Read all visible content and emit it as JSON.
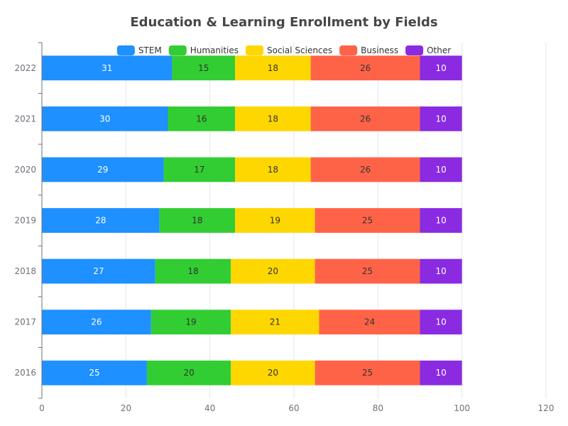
{
  "chart_data": {
    "type": "bar",
    "orientation": "horizontal",
    "stacked": true,
    "title": "Education & Learning Enrollment by Fields",
    "categories": [
      "2022",
      "2021",
      "2020",
      "2019",
      "2018",
      "2017",
      "2016"
    ],
    "series": [
      {
        "name": "STEM",
        "color": "#1e90ff",
        "label_color": "#ffffff",
        "values": [
          31,
          30,
          29,
          28,
          27,
          26,
          25
        ]
      },
      {
        "name": "Humanities",
        "color": "#32cd32",
        "label_color": "#333333",
        "values": [
          15,
          16,
          17,
          18,
          18,
          19,
          20
        ]
      },
      {
        "name": "Social Sciences",
        "color": "#ffd700",
        "label_color": "#333333",
        "values": [
          18,
          18,
          18,
          19,
          20,
          21,
          20
        ]
      },
      {
        "name": "Business",
        "color": "#ff6347",
        "label_color": "#333333",
        "values": [
          26,
          26,
          26,
          25,
          25,
          24,
          25
        ]
      },
      {
        "name": "Other",
        "color": "#8a2be2",
        "label_color": "#ffffff",
        "values": [
          10,
          10,
          10,
          10,
          10,
          10,
          10
        ]
      }
    ],
    "xlim": [
      0,
      120
    ],
    "x_ticks": [
      "0",
      "20",
      "40",
      "60",
      "80",
      "100",
      "120"
    ],
    "xlabel": "",
    "ylabel": "",
    "grid": "vertical",
    "legend_position": "top-center",
    "data_labels": true
  }
}
